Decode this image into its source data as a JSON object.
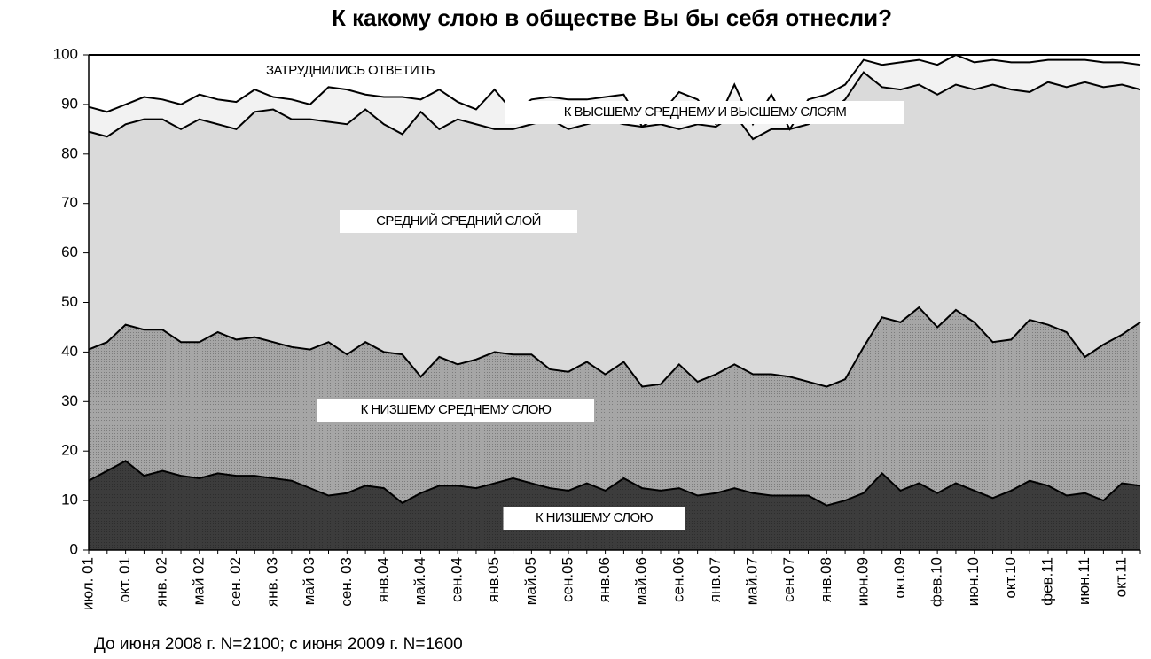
{
  "chart_data": {
    "type": "stacked_area",
    "title": "К какому слою в обществе Вы бы себя отнесли?",
    "note": "До июня 2008 г. N=2100; с июня 2009 г.  N=1600",
    "categories": [
      "июл. 01",
      null,
      "окт. 01",
      null,
      "янв. 02",
      null,
      "май 02",
      null,
      "сен. 02",
      null,
      "янв. 03",
      null,
      "май 03",
      null,
      "сен. 03",
      null,
      "янв.04",
      null,
      "май.04",
      null,
      "сен.04",
      null,
      "янв.05",
      null,
      "май.05",
      null,
      "сен.05",
      null,
      "янв.06",
      null,
      "май.06",
      null,
      "сен.06",
      null,
      "янв.07",
      null,
      "май.07",
      null,
      "сен.07",
      null,
      "янв.08",
      null,
      "июн.09",
      null,
      "окт.09",
      null,
      "фев.10",
      null,
      "июн.10",
      null,
      "окт.10",
      null,
      "фев.11",
      null,
      "июн.11",
      null,
      "окт.11",
      null
    ],
    "series": [
      {
        "name": "К НИЗШЕМУ СЛОЮ",
        "color": "#3c3c3c",
        "values": [
          14,
          16,
          18,
          15,
          16,
          15,
          14.5,
          15.5,
          15,
          15,
          14.5,
          14,
          12.5,
          11,
          11.5,
          13,
          12.5,
          9.5,
          11.5,
          13,
          13,
          12.5,
          13.5,
          14.5,
          13.5,
          12.5,
          12,
          13.5,
          12,
          14.5,
          12.5,
          12,
          12.5,
          11,
          11.5,
          12.5,
          11.5,
          11,
          11,
          11,
          9,
          10,
          11.5,
          15.5,
          12,
          13.5,
          11.5,
          13.5,
          12,
          10.5,
          12,
          14,
          13,
          11,
          11.5,
          10,
          13.5,
          13
        ]
      },
      {
        "name": "К НИЗШЕМУ СРЕДНЕМУ СЛОЮ",
        "color": "#a6a6a6",
        "values": [
          26.5,
          26,
          27.5,
          29.5,
          28.5,
          27,
          27.5,
          28.5,
          27.5,
          28,
          27.5,
          27,
          28,
          31,
          28,
          29,
          27.5,
          30,
          23.5,
          26,
          24.5,
          26,
          26.5,
          25,
          26,
          24,
          24,
          24.5,
          23.5,
          23.5,
          20.5,
          21.5,
          25,
          23,
          24,
          25,
          24,
          24.5,
          24,
          23,
          24,
          24.5,
          29.5,
          31.5,
          34,
          35.5,
          33.5,
          35,
          34,
          31.5,
          30.5,
          32.5,
          32.5,
          33,
          27.5,
          31.5,
          30,
          33
        ]
      },
      {
        "name": "СРЕДНИЙ СРЕДНИЙ СЛОЙ",
        "color": "#dadada",
        "values": [
          44,
          41.5,
          40.5,
          42.5,
          42.5,
          43,
          45,
          42,
          42.5,
          45.5,
          47,
          46,
          46.5,
          44.5,
          46.5,
          47,
          46,
          44.5,
          53.5,
          46,
          49.5,
          47.5,
          45,
          45.5,
          46.5,
          50.5,
          49,
          48,
          51.5,
          48,
          52.5,
          52.5,
          47.5,
          52,
          50,
          50.5,
          47.5,
          49.5,
          50,
          52,
          55,
          56.5,
          55.5,
          46.5,
          47,
          45,
          47,
          45.5,
          47,
          52,
          50.5,
          46,
          49,
          49.5,
          55.5,
          52,
          50.5,
          47
        ]
      },
      {
        "name": "К ВЫСШЕМУ СРЕДНЕМУ И ВЫСШЕМУ СЛОЯМ",
        "color": "#f2f2f2",
        "values": [
          5,
          5,
          4,
          4.5,
          4,
          5,
          5,
          5,
          5.5,
          4.5,
          2.5,
          4,
          3,
          7,
          7,
          3,
          5.5,
          7.5,
          2.5,
          8,
          3.5,
          3,
          8,
          3.5,
          5,
          4.5,
          6,
          5,
          4.5,
          6,
          0,
          2,
          7.5,
          5,
          0.5,
          6,
          3,
          7,
          0,
          5,
          4,
          3,
          2.5,
          4.5,
          5.5,
          5,
          6,
          6,
          5.5,
          5,
          5.5,
          6,
          4.5,
          5.5,
          4.5,
          5,
          4.5,
          5
        ]
      },
      {
        "name": "ЗАТРУДНИЛИСЬ ОТВЕТИТЬ",
        "color": "#ffffff",
        "values": [
          10.5,
          11.5,
          10,
          8.5,
          9,
          10,
          8,
          9,
          9.5,
          7,
          8.5,
          9,
          10,
          6.5,
          7,
          8,
          8.5,
          8.5,
          9,
          7,
          9.5,
          11,
          7,
          11.5,
          9,
          8.5,
          9,
          9,
          8.5,
          8,
          14.5,
          12,
          7.5,
          9,
          14,
          6,
          14,
          8,
          15,
          9,
          8,
          6,
          1,
          2,
          1.5,
          1,
          2,
          0,
          1.5,
          1,
          1.5,
          1.5,
          1,
          1,
          1,
          1.5,
          1.5,
          2
        ]
      }
    ],
    "ylim": [
      0,
      100
    ],
    "yticks": [
      0,
      10,
      20,
      30,
      40,
      50,
      60,
      70,
      80,
      90,
      100
    ]
  }
}
